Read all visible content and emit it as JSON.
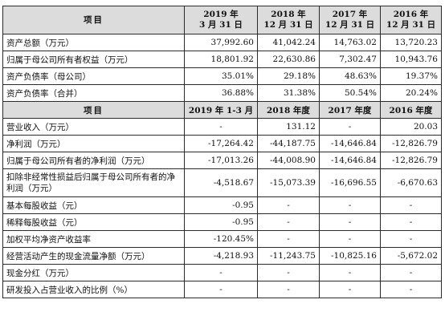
{
  "header1": {
    "item": "项目",
    "cols": [
      [
        "2019 年",
        "3 月 31 日"
      ],
      [
        "2018 年",
        "12 月 31 日"
      ],
      [
        "2017 年",
        "12 月 31 日"
      ],
      [
        "2016 年",
        "12 月 31 日"
      ]
    ]
  },
  "section1": [
    {
      "label": "资产总额（万元）",
      "values": [
        "37,992.60",
        "41,042.24",
        "14,763.02",
        "13,720.23"
      ]
    },
    {
      "label": "归属于母公司所有者权益（万元）",
      "values": [
        "18,801.92",
        "22,630.86",
        "7,302.47",
        "10,943.76"
      ]
    },
    {
      "label": "资产负债率（母公司）",
      "values": [
        "35.01%",
        "29.18%",
        "48.63%",
        "19.37%"
      ]
    },
    {
      "label": "资产负债率（合并）",
      "values": [
        "36.88%",
        "31.38%",
        "50.54%",
        "20.24%"
      ]
    }
  ],
  "header2": {
    "item": "项目",
    "cols": [
      "2019 年 1-3 月",
      "2018 年度",
      "2017 年度",
      "2016 年度"
    ]
  },
  "section2": [
    {
      "label": "营业收入（万元）",
      "values": [
        "-",
        "131.12",
        "-",
        "20.03"
      ]
    },
    {
      "label": "净利润（万元）",
      "values": [
        "-17,264.42",
        "-44,187.75",
        "-14,646.84",
        "-12,826.79"
      ]
    },
    {
      "label": "归属于母公司所有者的净利润（万元）",
      "values": [
        "-17,013.26",
        "-44,008.90",
        "-14,646.84",
        "-12,826.79"
      ]
    },
    {
      "label": "扣除非经常性损益后归属于母公司所有者的净利润（万元）",
      "values": [
        "-4,518.67",
        "-15,073.39",
        "-16,696.55",
        "-6,670.63"
      ],
      "tall": true
    },
    {
      "label": "基本每股收益（元）",
      "values": [
        "-0.95",
        "-",
        "-",
        "-"
      ]
    },
    {
      "label": "稀释每股收益（元）",
      "values": [
        "-0.95",
        "-",
        "-",
        "-"
      ]
    },
    {
      "label": "加权平均净资产收益率",
      "values": [
        "-120.45%",
        "-",
        "-",
        "-"
      ]
    },
    {
      "label": "经营活动产生的现金流量净额（万元）",
      "values": [
        "-4,218.93",
        "-11,243.75",
        "-10,825.16",
        "-5,672.02"
      ]
    },
    {
      "label": "现金分红（万元）",
      "values": [
        "-",
        "-",
        "-",
        "-"
      ]
    },
    {
      "label": "研发投入占营业收入的比例（%）",
      "values": [
        "-",
        "-",
        "-",
        "-"
      ]
    }
  ]
}
